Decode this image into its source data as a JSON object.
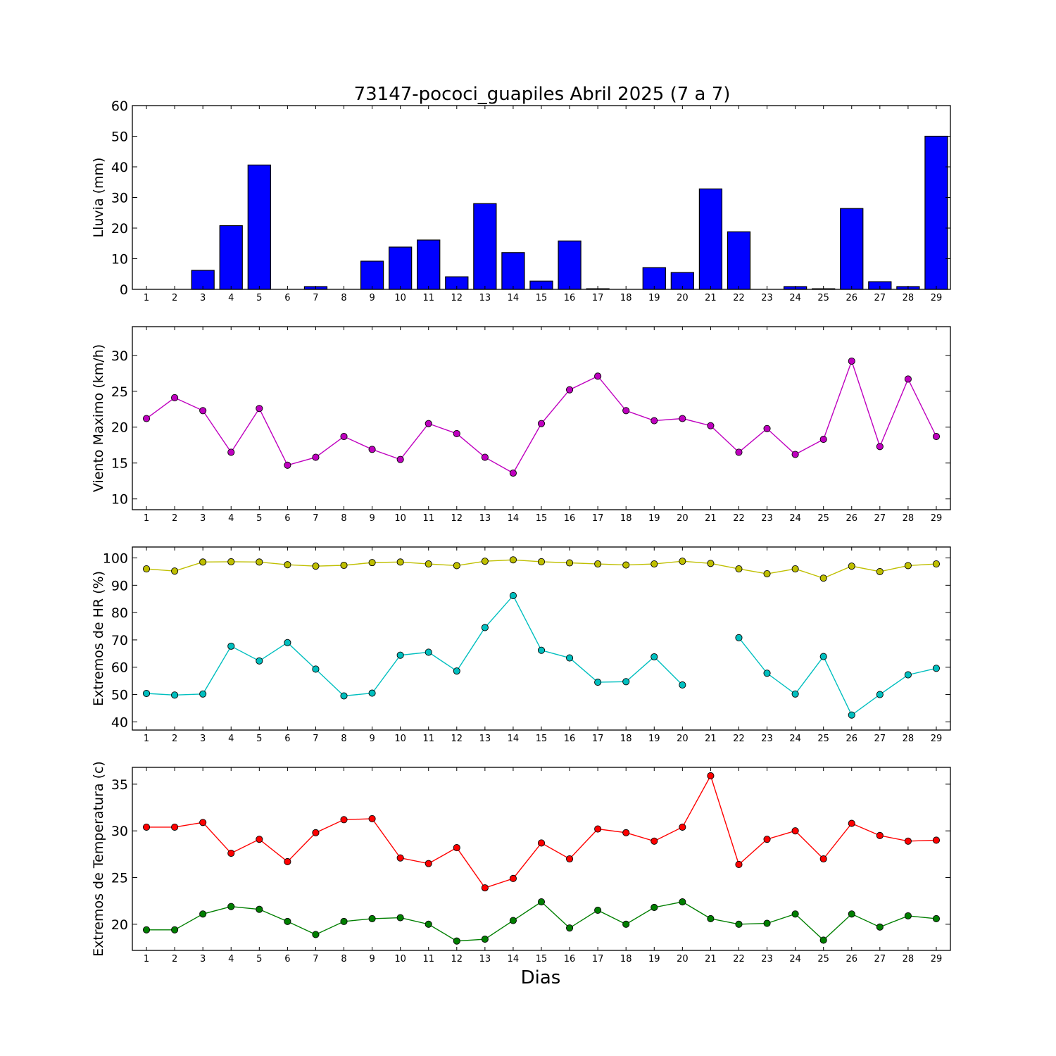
{
  "title": "73147-pococi_guapiles Abril 2025  (7 a 7)",
  "xlabel": "Dias",
  "chart_data": [
    {
      "type": "bar",
      "ylabel": "Lluvia (mm)",
      "categories": [
        1,
        2,
        3,
        4,
        5,
        6,
        7,
        8,
        9,
        10,
        11,
        12,
        13,
        14,
        15,
        16,
        17,
        18,
        19,
        20,
        21,
        22,
        23,
        24,
        25,
        26,
        27,
        28,
        29
      ],
      "ylim": [
        0,
        60
      ],
      "yticks": [
        0,
        10,
        20,
        30,
        40,
        50,
        60
      ],
      "series": [
        {
          "values": [
            0,
            0,
            6.2,
            20.8,
            40.6,
            0,
            0.9,
            0,
            9.2,
            13.8,
            16.1,
            4.1,
            28.0,
            12.0,
            2.7,
            15.8,
            0.2,
            0,
            7.1,
            5.5,
            32.8,
            18.8,
            0,
            0.9,
            0.2,
            26.4,
            2.5,
            0.9,
            50.0
          ],
          "color": "#0000ff"
        }
      ]
    },
    {
      "type": "line",
      "ylabel": "Viento Maximo (km/h)",
      "x": [
        1,
        2,
        3,
        4,
        5,
        6,
        7,
        8,
        9,
        10,
        11,
        12,
        13,
        14,
        15,
        16,
        17,
        18,
        19,
        20,
        21,
        22,
        23,
        24,
        25,
        26,
        27,
        28,
        29
      ],
      "ylim": [
        8.5,
        34
      ],
      "yticks": [
        10,
        15,
        20,
        25,
        30
      ],
      "series": [
        {
          "values": [
            21.2,
            24.1,
            22.3,
            16.5,
            22.6,
            14.7,
            15.8,
            18.7,
            16.9,
            15.5,
            20.5,
            19.1,
            15.8,
            13.6,
            20.5,
            25.2,
            27.1,
            22.3,
            20.9,
            21.2,
            20.2,
            16.5,
            19.8,
            16.2,
            18.3,
            29.2,
            17.3,
            26.7,
            18.7
          ],
          "color": "#bf00bf"
        }
      ]
    },
    {
      "type": "line",
      "ylabel": "Extremos de HR (%)",
      "x": [
        1,
        2,
        3,
        4,
        5,
        6,
        7,
        8,
        9,
        10,
        11,
        12,
        13,
        14,
        15,
        16,
        17,
        18,
        19,
        20,
        21,
        22,
        23,
        24,
        25,
        26,
        27,
        28,
        29
      ],
      "ylim": [
        37,
        104
      ],
      "yticks": [
        40,
        50,
        60,
        70,
        80,
        90,
        100
      ],
      "series": [
        {
          "values": [
            96.0,
            95.2,
            98.5,
            98.6,
            98.5,
            97.5,
            97.0,
            97.3,
            98.3,
            98.5,
            97.8,
            97.2,
            98.8,
            99.3,
            98.6,
            98.2,
            97.8,
            97.4,
            97.8,
            98.8,
            98.0,
            96.0,
            94.2,
            96.0,
            92.6,
            97.0,
            95.0,
            97.2,
            97.8
          ],
          "color": "#bfbf00"
        },
        {
          "values": [
            50.4,
            49.8,
            50.2,
            67.7,
            62.3,
            69.0,
            59.3,
            49.5,
            50.5,
            64.4,
            65.5,
            58.6,
            74.5,
            86.2,
            66.2,
            63.4,
            54.5,
            54.7,
            63.8,
            53.5,
            null,
            70.8,
            57.8,
            50.2,
            63.9,
            42.5,
            50.0,
            57.2,
            59.6
          ],
          "color": "#00bfbf"
        }
      ]
    },
    {
      "type": "line",
      "ylabel": "Extremos de Temperatura (c)",
      "x": [
        1,
        2,
        3,
        4,
        5,
        6,
        7,
        8,
        9,
        10,
        11,
        12,
        13,
        14,
        15,
        16,
        17,
        18,
        19,
        20,
        21,
        22,
        23,
        24,
        25,
        26,
        27,
        28,
        29
      ],
      "ylim": [
        17.2,
        36.8
      ],
      "yticks": [
        20,
        25,
        30,
        35
      ],
      "series": [
        {
          "values": [
            30.4,
            30.4,
            30.9,
            27.6,
            29.1,
            26.7,
            29.8,
            31.2,
            31.3,
            27.1,
            26.5,
            28.2,
            23.9,
            24.9,
            28.7,
            27.0,
            30.2,
            29.8,
            28.9,
            30.4,
            35.9,
            26.4,
            29.1,
            30.0,
            27.0,
            30.8,
            29.5,
            28.9,
            29.0
          ],
          "color": "#ff0000"
        },
        {
          "values": [
            19.4,
            19.4,
            21.1,
            21.9,
            21.6,
            20.3,
            18.9,
            20.3,
            20.6,
            20.7,
            20.0,
            18.2,
            18.4,
            20.4,
            22.4,
            19.6,
            21.5,
            20.0,
            21.8,
            22.4,
            20.6,
            20.0,
            20.1,
            21.1,
            18.3,
            21.1,
            19.7,
            20.9,
            20.6
          ],
          "color": "#007f00"
        }
      ]
    }
  ]
}
